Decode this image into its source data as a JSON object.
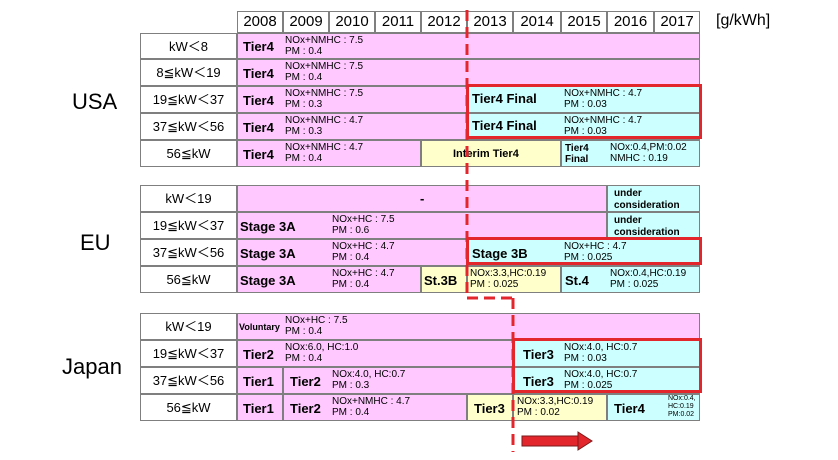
{
  "header": {
    "years": [
      "2008",
      "2009",
      "2010",
      "2011",
      "2012",
      "2013",
      "2014",
      "2015",
      "2016",
      "2017"
    ],
    "unit": "[g/kWh]"
  },
  "usa": {
    "region": "USA",
    "rows": [
      {
        "category": "kW＜8",
        "stage1": "Tier4",
        "spec1": "NOx+NMHC : 7.5\nPM : 0.4"
      },
      {
        "category": "8≦kW＜19",
        "stage1": "Tier4",
        "spec1": "NOx+NMHC : 7.5\nPM : 0.4"
      },
      {
        "category": "19≦kW＜37",
        "stage1": "Tier4",
        "spec1": "NOx+NMHC : 7.5\nPM : 0.3",
        "stage2": "Tier4 Final",
        "spec2": "NOx+NMHC : 4.7\nPM : 0.03"
      },
      {
        "category": "37≦kW＜56",
        "stage1": "Tier4",
        "spec1": "NOx+NMHC : 4.7\nPM : 0.3",
        "stage2": "Tier4 Final",
        "spec2": "NOx+NMHC : 4.7\nPM : 0.03"
      },
      {
        "category": "56≦kW",
        "stage1": "Tier4",
        "spec1": "NOx+NMHC : 4.7\nPM : 0.4",
        "stage2": "Interim Tier4",
        "stage3": "Tier4\nFinal",
        "spec3": "NOx:0.4,PM:0.02\nNMHC : 0.19"
      }
    ]
  },
  "eu": {
    "region": "EU",
    "rows": [
      {
        "category": "kW＜19",
        "stage1": "-",
        "stage2": "under\nconsideration"
      },
      {
        "category": "19≦kW＜37",
        "stage1": "Stage 3A",
        "spec1": "NOx+HC : 7.5\nPM : 0.6",
        "stage2": "under\nconsideration"
      },
      {
        "category": "37≦kW＜56",
        "stage1": "Stage 3A",
        "spec1": "NOx+HC : 4.7\nPM : 0.4",
        "stage2": "Stage 3B",
        "spec2": "NOx+HC : 4.7\nPM : 0.025"
      },
      {
        "category": "56≦kW",
        "stage1": "Stage 3A",
        "spec1": "NOx+HC : 4.7\nPM : 0.4",
        "stage2": "St.3B",
        "spec2": "NOx:3.3,HC:0.19\nPM : 0.025",
        "stage3": "St.4",
        "spec3": "NOx:0.4,HC:0.19\nPM : 0.025"
      }
    ]
  },
  "japan": {
    "region": "Japan",
    "rows": [
      {
        "category": "kW＜19",
        "stage1": "Voluntary",
        "spec1": "NOx+HC : 7.5\nPM : 0.4"
      },
      {
        "category": "19≦kW＜37",
        "stage1": "Tier2",
        "spec1": "NOx:6.0, HC:1.0\nPM : 0.4",
        "stage2": "Tier3",
        "spec2": "NOx:4.0, HC:0.7\nPM : 0.03"
      },
      {
        "category": "37≦kW＜56",
        "stage1": "Tier1",
        "stage1b": "Tier2",
        "spec1": "NOx:4.0, HC:0.7\nPM : 0.3",
        "stage2": "Tier3",
        "spec2": "NOx:4.0, HC:0.7\nPM : 0.025"
      },
      {
        "category": "56≦kW",
        "stage1": "Tier1",
        "stage1b": "Tier2",
        "spec1": "NOx+NMHC : 4.7\nPM : 0.4",
        "stage2": "Tier3",
        "spec2": "NOx:3.3,HC:0.19\nPM : 0.02",
        "stage3": "Tier4",
        "spec3": "NOx:0.4,\nHC:0.19\nPM:0.02"
      }
    ]
  },
  "colors": {
    "pink": "#ffc8ff",
    "cyan": "#ccffff",
    "yellow": "#ffffcc",
    "red": "#e3262c"
  }
}
